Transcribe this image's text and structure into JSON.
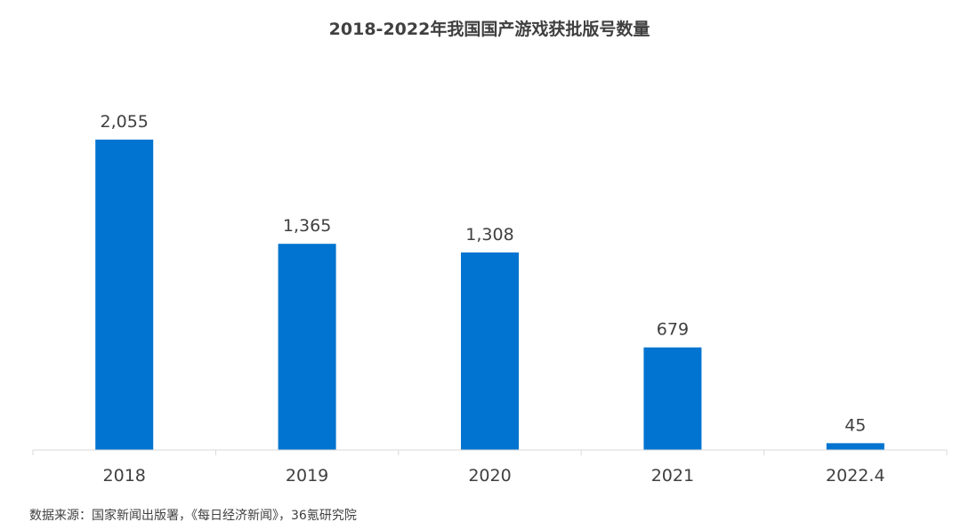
{
  "chart_data": {
    "type": "bar",
    "title": "2018-2022年我国国产游戏获批版号数量",
    "categories": [
      "2018",
      "2019",
      "2020",
      "2021",
      "2022.4"
    ],
    "values": [
      2055,
      1365,
      1308,
      679,
      45
    ],
    "value_labels": [
      "2,055",
      "1,365",
      "1,308",
      "679",
      "45"
    ],
    "ylim": [
      0,
      2055
    ],
    "grid": false,
    "legend": "none",
    "bar_color": "#0074D0",
    "axis_color": "#D9D9D9",
    "label_color": "#404040"
  },
  "source_note": "数据来源：国家新闻出版署，《每日经济新闻》，36氪研究院"
}
